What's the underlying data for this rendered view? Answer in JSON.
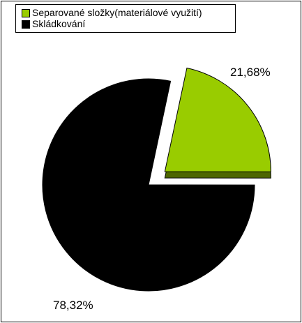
{
  "chart_data": {
    "type": "pie",
    "categories": [
      "Separované složky(materiálové využití)",
      "Skládkování"
    ],
    "values": [
      21.68,
      78.32
    ],
    "value_labels": [
      "21,68%",
      "78,32%"
    ],
    "colors": [
      "#99cc00",
      "#000000"
    ],
    "legend": "top-left"
  }
}
